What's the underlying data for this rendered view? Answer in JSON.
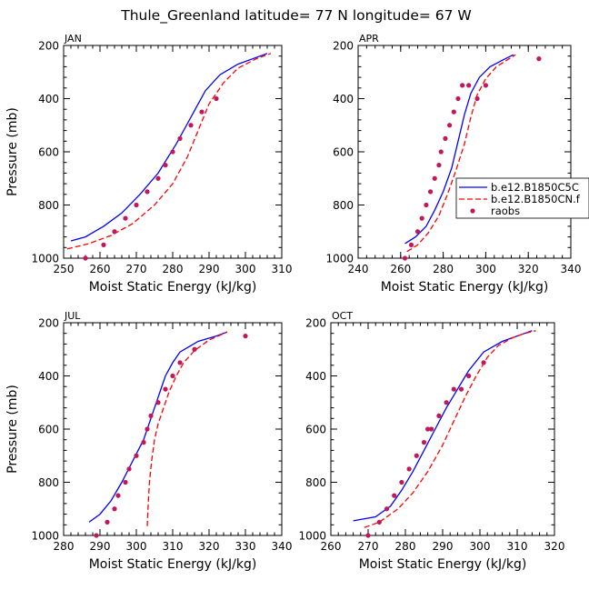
{
  "figure": {
    "title": "Thule_Greenland   latitude= 77 N longitude= 67 W"
  },
  "colors": {
    "model1": "#0000ff",
    "model2": "#ff0000",
    "obs": "#c2185b",
    "axis": "#000000"
  },
  "chart_data": [
    {
      "type": "line",
      "title": "JAN",
      "xlabel": "Moist Static Energy (kJ/kg)",
      "ylabel": "Pressure (mb)",
      "xlim": [
        250,
        310
      ],
      "ylim": [
        1000,
        200
      ],
      "y_reversed": true,
      "xticks": [
        250,
        260,
        270,
        280,
        290,
        300,
        310
      ],
      "yticks": [
        200,
        400,
        600,
        800,
        1000
      ],
      "series": [
        {
          "key": "model1",
          "style": "solid",
          "x": [
            252,
            256,
            261,
            266,
            271,
            276,
            281,
            285,
            289,
            293,
            298,
            303,
            306
          ],
          "y": [
            935,
            920,
            880,
            830,
            760,
            680,
            570,
            470,
            370,
            310,
            270,
            245,
            230
          ]
        },
        {
          "key": "model2",
          "style": "dashed",
          "x": [
            251,
            257,
            263,
            269,
            275,
            280,
            284,
            287,
            290,
            294,
            298,
            303,
            307
          ],
          "y": [
            965,
            945,
            915,
            870,
            800,
            720,
            620,
            520,
            420,
            340,
            285,
            250,
            230
          ]
        },
        {
          "key": "obs",
          "style": "markers",
          "x": [
            256,
            261,
            264,
            267,
            270,
            273,
            276,
            278,
            280,
            282,
            285,
            288,
            292
          ],
          "y": [
            1000,
            950,
            900,
            850,
            800,
            750,
            700,
            650,
            600,
            550,
            500,
            450,
            400
          ]
        }
      ]
    },
    {
      "type": "line",
      "title": "APR",
      "xlabel": "Moist Static Energy (kJ/kg)",
      "ylabel": "",
      "xlim": [
        240,
        340
      ],
      "ylim": [
        1000,
        200
      ],
      "y_reversed": true,
      "xticks": [
        240,
        260,
        280,
        300,
        320,
        340
      ],
      "yticks": [
        200,
        400,
        600,
        800,
        1000
      ],
      "legend": {
        "placement": "right",
        "entries": [
          {
            "key": "model1",
            "label": "b.e12.B1850C5C"
          },
          {
            "key": "model2",
            "label": "b.e12.B1850CN.f"
          },
          {
            "key": "obs",
            "label": "raobs"
          }
        ]
      },
      "series": [
        {
          "key": "model1",
          "style": "solid",
          "x": [
            262,
            267,
            272,
            276,
            280,
            284,
            287,
            290,
            293,
            297,
            302,
            308,
            313
          ],
          "y": [
            945,
            920,
            880,
            820,
            750,
            660,
            560,
            460,
            380,
            320,
            280,
            255,
            235
          ]
        },
        {
          "key": "model2",
          "style": "dashed",
          "x": [
            263,
            268,
            273,
            278,
            282,
            286,
            290,
            293,
            296,
            300,
            305,
            310,
            314
          ],
          "y": [
            975,
            950,
            905,
            840,
            760,
            670,
            570,
            470,
            385,
            325,
            280,
            255,
            235
          ]
        },
        {
          "key": "obs",
          "style": "markers",
          "x": [
            262,
            265,
            268,
            270,
            272,
            274,
            276,
            278,
            279,
            281,
            283,
            285,
            287,
            289,
            292,
            296,
            300,
            325
          ],
          "y": [
            1000,
            950,
            900,
            850,
            800,
            750,
            700,
            650,
            600,
            550,
            500,
            450,
            400,
            350,
            350,
            400,
            350,
            250
          ]
        }
      ]
    },
    {
      "type": "line",
      "title": "JUL",
      "xlabel": "Moist Static Energy (kJ/kg)",
      "ylabel": "Pressure (mb)",
      "xlim": [
        280,
        340
      ],
      "ylim": [
        1000,
        200
      ],
      "y_reversed": true,
      "xticks": [
        280,
        290,
        300,
        310,
        320,
        330,
        340
      ],
      "yticks": [
        200,
        400,
        600,
        800,
        1000
      ],
      "series": [
        {
          "key": "model1",
          "style": "solid",
          "x": [
            287,
            290,
            293,
            296,
            299,
            302,
            304,
            306,
            308,
            310,
            312,
            317,
            322,
            325
          ],
          "y": [
            950,
            920,
            870,
            800,
            720,
            640,
            560,
            480,
            400,
            350,
            310,
            270,
            250,
            235
          ]
        },
        {
          "key": "model2",
          "style": "dashed",
          "x": [
            303,
            303.2,
            303.6,
            304.2,
            305,
            306,
            307.5,
            309,
            311,
            313,
            316,
            320,
            325
          ],
          "y": [
            965,
            900,
            800,
            720,
            640,
            580,
            520,
            460,
            400,
            350,
            305,
            265,
            235
          ]
        },
        {
          "key": "obs",
          "style": "markers",
          "x": [
            289,
            292,
            294,
            295,
            297,
            298,
            300,
            302,
            303,
            304,
            306,
            308,
            310,
            312,
            316,
            330
          ],
          "y": [
            1000,
            950,
            900,
            850,
            800,
            750,
            700,
            650,
            600,
            550,
            500,
            450,
            400,
            350,
            300,
            250
          ]
        }
      ]
    },
    {
      "type": "line",
      "title": "OCT",
      "xlabel": "Moist Static Energy (kJ/kg)",
      "ylabel": "",
      "xlim": [
        260,
        320
      ],
      "ylim": [
        1000,
        200
      ],
      "y_reversed": true,
      "xticks": [
        260,
        270,
        280,
        290,
        300,
        310,
        320
      ],
      "yticks": [
        200,
        400,
        600,
        800,
        1000
      ],
      "series": [
        {
          "key": "model1",
          "style": "solid",
          "x": [
            266,
            272,
            276,
            279,
            282,
            285,
            288,
            291,
            294,
            297,
            301,
            306,
            312,
            314
          ],
          "y": [
            945,
            930,
            890,
            830,
            760,
            680,
            600,
            520,
            450,
            380,
            310,
            270,
            240,
            230
          ]
        },
        {
          "key": "model2",
          "style": "dashed",
          "x": [
            269,
            273,
            278,
            282,
            286,
            290,
            293,
            296,
            299,
            302,
            305,
            309,
            312,
            315
          ],
          "y": [
            970,
            950,
            900,
            840,
            760,
            660,
            570,
            480,
            400,
            330,
            285,
            255,
            240,
            230
          ]
        },
        {
          "key": "obs",
          "style": "markers",
          "x": [
            270,
            273,
            275,
            277,
            279,
            281,
            283,
            285,
            286,
            287,
            289,
            291,
            293,
            295,
            297,
            301
          ],
          "y": [
            1000,
            950,
            900,
            850,
            800,
            750,
            700,
            650,
            600,
            600,
            550,
            500,
            450,
            450,
            400,
            350
          ]
        }
      ]
    }
  ]
}
